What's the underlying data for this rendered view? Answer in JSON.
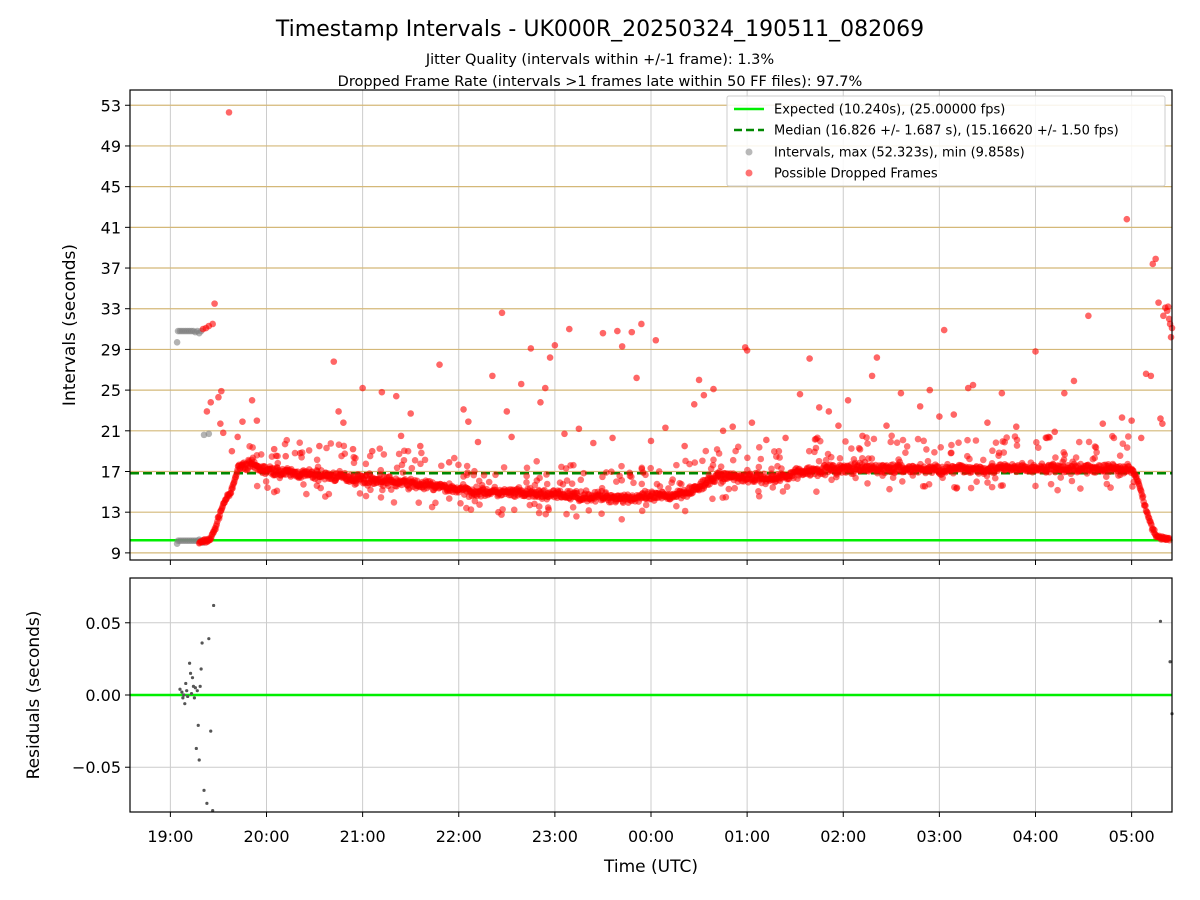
{
  "figure": {
    "title": "Timestamp Intervals - UK000R_20250324_190511_082069",
    "subtitle_1": "Jitter Quality (intervals within +/-1 frame): 1.3%",
    "subtitle_2": "Dropped Frame Rate (intervals >1 frames late within 50 FF files): 97.7%",
    "xlabel": "Time (UTC)"
  },
  "colors": {
    "expected": "#00ee00",
    "median": "#008800",
    "intervals": "#808080",
    "dropped": "#ff0000",
    "grid_top": "#d4b878",
    "grid_bottom": "#cccccc",
    "residual_dot": "#555555"
  },
  "chart_data": [
    {
      "type": "scatter",
      "ylabel": "Intervals (seconds)",
      "xlim": [
        18.58,
        29.42
      ],
      "ylim": [
        8.3,
        54.5
      ],
      "x_ticks": [
        19,
        20,
        21,
        22,
        23,
        24,
        25,
        26,
        27,
        28,
        29
      ],
      "x_tick_labels": [
        "19:00",
        "20:00",
        "21:00",
        "22:00",
        "23:00",
        "00:00",
        "01:00",
        "02:00",
        "03:00",
        "04:00",
        "05:00"
      ],
      "y_ticks": [
        9,
        13,
        17,
        21,
        25,
        29,
        33,
        37,
        41,
        45,
        49,
        53
      ],
      "y_tick_labels": [
        "9",
        "13",
        "17",
        "21",
        "25",
        "29",
        "33",
        "37",
        "41",
        "45",
        "49",
        "53"
      ],
      "legend_position": "top-right",
      "lines": [
        {
          "name": "Expected (10.240s), (25.00000 fps)",
          "y": 10.24,
          "style": "solid"
        },
        {
          "name": "Median (16.826 +/- 1.687 s), (15.16620 +/- 1.50 fps)",
          "y": 16.826,
          "style": "dashed"
        }
      ],
      "series": [
        {
          "name": "Intervals, max (52.323s), min (9.858s)",
          "points": [
            [
              19.07,
              29.7
            ],
            [
              19.08,
              30.8
            ],
            [
              19.1,
              30.8
            ],
            [
              19.12,
              30.8
            ],
            [
              19.14,
              30.8
            ],
            [
              19.16,
              30.8
            ],
            [
              19.18,
              30.8
            ],
            [
              19.2,
              30.8
            ],
            [
              19.22,
              30.8
            ],
            [
              19.24,
              30.8
            ],
            [
              19.26,
              30.7
            ],
            [
              19.28,
              30.8
            ],
            [
              19.3,
              30.6
            ],
            [
              19.32,
              30.8
            ],
            [
              19.35,
              20.6
            ],
            [
              19.4,
              20.7
            ],
            [
              19.07,
              9.9
            ],
            [
              19.08,
              10.2
            ],
            [
              19.1,
              10.2
            ],
            [
              19.12,
              10.2
            ],
            [
              19.14,
              10.2
            ],
            [
              19.16,
              10.2
            ],
            [
              19.18,
              10.2
            ],
            [
              19.2,
              10.2
            ],
            [
              19.22,
              10.2
            ],
            [
              19.24,
              10.2
            ],
            [
              19.26,
              10.2
            ],
            [
              19.28,
              10.2
            ],
            [
              19.3,
              10.3
            ],
            [
              19.32,
              10.2
            ],
            [
              19.34,
              10.0
            ]
          ]
        },
        {
          "name": "Possible Dropped Frames",
          "points": [
            [
              19.34,
              31.0
            ],
            [
              19.37,
              31.1
            ],
            [
              19.4,
              31.3
            ],
            [
              19.44,
              31.5
            ],
            [
              19.46,
              33.5
            ],
            [
              19.38,
              22.9
            ],
            [
              19.42,
              23.8
            ],
            [
              19.5,
              24.3
            ],
            [
              19.53,
              24.9
            ],
            [
              19.52,
              21.7
            ],
            [
              19.55,
              20.8
            ],
            [
              19.61,
              52.3
            ],
            [
              19.64,
              19.0
            ],
            [
              19.7,
              20.4
            ],
            [
              19.75,
              21.9
            ],
            [
              19.85,
              24.0
            ],
            [
              19.9,
              22.0
            ],
            [
              20.08,
              19.2
            ],
            [
              20.2,
              18.5
            ],
            [
              20.35,
              18.8
            ],
            [
              20.55,
              19.5
            ],
            [
              20.7,
              27.8
            ],
            [
              20.75,
              22.9
            ],
            [
              20.8,
              21.8
            ],
            [
              20.9,
              19.2
            ],
            [
              21.0,
              25.2
            ],
            [
              21.1,
              19.0
            ],
            [
              21.2,
              24.8
            ],
            [
              21.35,
              24.4
            ],
            [
              21.4,
              20.5
            ],
            [
              21.5,
              22.7
            ],
            [
              21.6,
              19.5
            ],
            [
              21.8,
              27.5
            ],
            [
              21.9,
              17.9
            ],
            [
              22.05,
              23.1
            ],
            [
              22.1,
              21.9
            ],
            [
              22.2,
              19.9
            ],
            [
              22.35,
              26.4
            ],
            [
              22.45,
              32.6
            ],
            [
              22.5,
              22.9
            ],
            [
              22.55,
              20.4
            ],
            [
              22.65,
              25.6
            ],
            [
              22.75,
              29.1
            ],
            [
              22.85,
              23.8
            ],
            [
              22.9,
              25.2
            ],
            [
              22.95,
              28.2
            ],
            [
              23.0,
              29.4
            ],
            [
              23.1,
              20.7
            ],
            [
              23.15,
              31.0
            ],
            [
              23.25,
              21.2
            ],
            [
              23.4,
              19.8
            ],
            [
              23.5,
              30.6
            ],
            [
              23.6,
              20.3
            ],
            [
              23.65,
              30.8
            ],
            [
              23.7,
              29.3
            ],
            [
              23.8,
              30.7
            ],
            [
              23.85,
              26.2
            ],
            [
              23.9,
              31.5
            ],
            [
              24.0,
              20.0
            ],
            [
              24.05,
              29.9
            ],
            [
              24.15,
              21.3
            ],
            [
              24.35,
              19.5
            ],
            [
              24.45,
              23.6
            ],
            [
              24.5,
              26.0
            ],
            [
              24.55,
              24.5
            ],
            [
              24.65,
              25.1
            ],
            [
              24.75,
              21.0
            ],
            [
              24.85,
              21.4
            ],
            [
              24.98,
              29.2
            ],
            [
              25.0,
              28.9
            ],
            [
              25.05,
              21.8
            ],
            [
              25.2,
              20.1
            ],
            [
              25.4,
              20.3
            ],
            [
              25.55,
              24.6
            ],
            [
              25.65,
              28.1
            ],
            [
              25.75,
              23.3
            ],
            [
              25.85,
              22.9
            ],
            [
              25.95,
              21.5
            ],
            [
              26.05,
              24.0
            ],
            [
              26.2,
              20.5
            ],
            [
              26.3,
              26.4
            ],
            [
              26.35,
              28.2
            ],
            [
              26.45,
              21.5
            ],
            [
              26.6,
              24.7
            ],
            [
              26.8,
              23.4
            ],
            [
              26.9,
              25.0
            ],
            [
              27.0,
              22.4
            ],
            [
              27.05,
              30.9
            ],
            [
              27.15,
              22.6
            ],
            [
              27.3,
              25.2
            ],
            [
              27.35,
              25.5
            ],
            [
              27.5,
              21.8
            ],
            [
              27.65,
              24.7
            ],
            [
              27.8,
              21.4
            ],
            [
              28.0,
              28.8
            ],
            [
              28.2,
              20.9
            ],
            [
              28.3,
              24.7
            ],
            [
              28.4,
              25.9
            ],
            [
              28.55,
              32.3
            ],
            [
              28.7,
              21.7
            ],
            [
              28.9,
              22.3
            ],
            [
              28.95,
              41.8
            ],
            [
              29.0,
              22.0
            ],
            [
              29.1,
              20.3
            ],
            [
              29.15,
              26.6
            ],
            [
              29.2,
              26.4
            ],
            [
              29.22,
              37.4
            ],
            [
              29.25,
              37.9
            ],
            [
              29.28,
              33.6
            ],
            [
              29.3,
              22.2
            ],
            [
              29.32,
              21.7
            ],
            [
              29.33,
              32.3
            ],
            [
              29.35,
              33.1
            ],
            [
              29.37,
              32.8
            ],
            [
              29.38,
              33.2
            ],
            [
              29.39,
              32.0
            ],
            [
              29.4,
              31.5
            ],
            [
              29.41,
              30.2
            ],
            [
              29.42,
              31.1
            ]
          ],
          "trend": [
            [
              19.3,
              10.0
            ],
            [
              19.38,
              10.2
            ],
            [
              19.42,
              10.4
            ],
            [
              19.47,
              11.5
            ],
            [
              19.52,
              13.0
            ],
            [
              19.57,
              14.2
            ],
            [
              19.63,
              14.9
            ],
            [
              19.67,
              16.2
            ],
            [
              19.71,
              17.5
            ],
            [
              19.8,
              17.7
            ],
            [
              20.0,
              17.1
            ],
            [
              20.3,
              16.8
            ],
            [
              20.6,
              16.6
            ],
            [
              21.0,
              16.3
            ],
            [
              21.4,
              15.9
            ],
            [
              21.8,
              15.5
            ],
            [
              22.1,
              15.1
            ],
            [
              22.5,
              14.9
            ],
            [
              23.0,
              14.7
            ],
            [
              23.5,
              14.5
            ],
            [
              23.8,
              14.4
            ],
            [
              24.2,
              14.6
            ],
            [
              24.5,
              15.4
            ],
            [
              24.7,
              16.6
            ],
            [
              25.0,
              16.4
            ],
            [
              25.3,
              16.3
            ],
            [
              25.5,
              16.9
            ],
            [
              25.8,
              17.2
            ],
            [
              26.2,
              17.3
            ],
            [
              26.6,
              17.3
            ],
            [
              27.0,
              17.2
            ],
            [
              27.5,
              17.3
            ],
            [
              28.0,
              17.3
            ],
            [
              28.5,
              17.3
            ],
            [
              28.9,
              17.3
            ],
            [
              29.0,
              17.3
            ],
            [
              29.05,
              16.4
            ],
            [
              29.1,
              15.0
            ],
            [
              29.15,
              13.2
            ],
            [
              29.2,
              11.8
            ],
            [
              29.25,
              10.8
            ],
            [
              29.3,
              10.5
            ],
            [
              29.4,
              10.3
            ]
          ]
        }
      ]
    },
    {
      "type": "scatter",
      "ylabel": "Residuals (seconds)",
      "xlim": [
        18.58,
        29.42
      ],
      "ylim": [
        -0.081,
        0.081
      ],
      "x_ticks": [
        19,
        20,
        21,
        22,
        23,
        24,
        25,
        26,
        27,
        28,
        29
      ],
      "x_tick_labels": [
        "19:00",
        "20:00",
        "21:00",
        "22:00",
        "23:00",
        "00:00",
        "01:00",
        "02:00",
        "03:00",
        "04:00",
        "05:00"
      ],
      "y_ticks": [
        -0.05,
        0.0,
        0.05
      ],
      "y_tick_labels": [
        "−0.05",
        "0.00",
        "0.05"
      ],
      "zero_line": 0.0,
      "points": [
        [
          19.1,
          0.004
        ],
        [
          19.12,
          0.002
        ],
        [
          19.13,
          -0.002
        ],
        [
          19.14,
          0.0
        ],
        [
          19.15,
          -0.006
        ],
        [
          19.16,
          0.008
        ],
        [
          19.17,
          0.003
        ],
        [
          19.18,
          -0.001
        ],
        [
          19.2,
          0.022
        ],
        [
          19.21,
          0.015
        ],
        [
          19.22,
          0.001
        ],
        [
          19.23,
          0.012
        ],
        [
          19.24,
          0.006
        ],
        [
          19.25,
          -0.002
        ],
        [
          19.26,
          0.005
        ],
        [
          19.27,
          -0.037
        ],
        [
          19.28,
          0.003
        ],
        [
          19.29,
          -0.021
        ],
        [
          19.3,
          -0.045
        ],
        [
          19.31,
          0.006
        ],
        [
          19.32,
          0.018
        ],
        [
          19.33,
          0.036
        ],
        [
          19.35,
          -0.066
        ],
        [
          19.38,
          -0.075
        ],
        [
          19.4,
          0.039
        ],
        [
          19.42,
          -0.025
        ],
        [
          19.45,
          0.062
        ],
        [
          19.44,
          -0.08
        ],
        [
          29.3,
          0.051
        ],
        [
          29.4,
          0.023
        ],
        [
          29.42,
          -0.013
        ]
      ]
    }
  ]
}
